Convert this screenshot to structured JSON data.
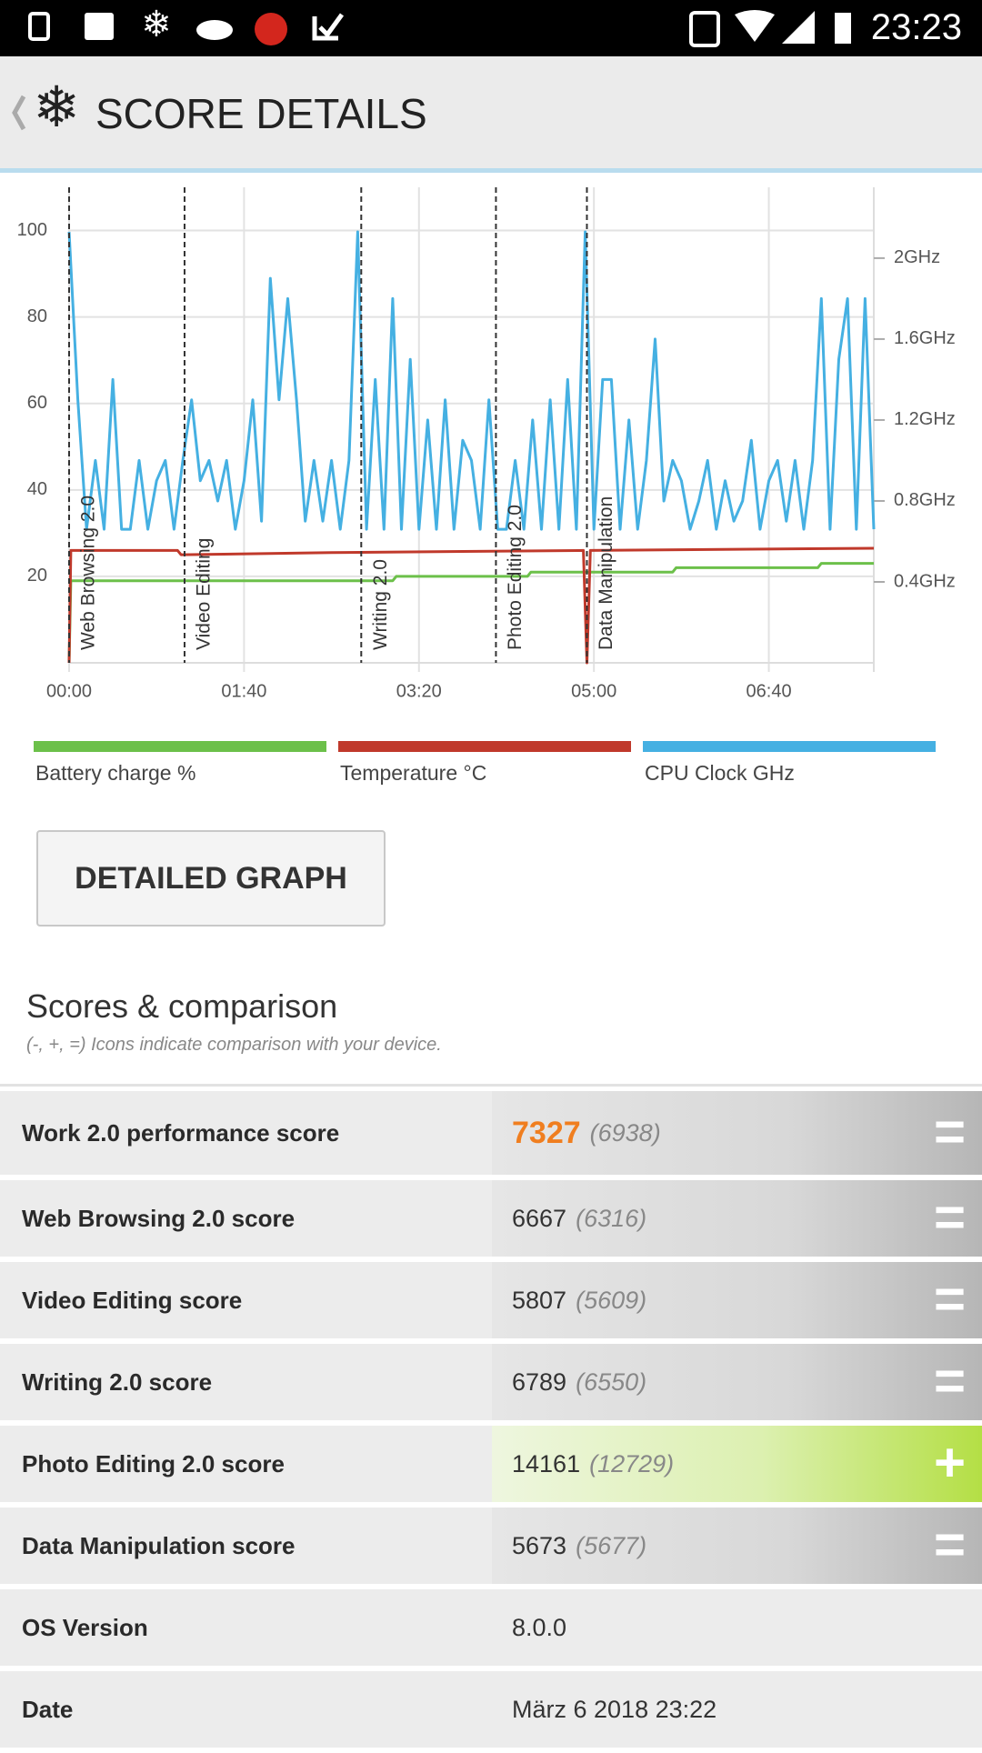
{
  "status_bar": {
    "time": "23:23"
  },
  "header": {
    "title": "SCORE DETAILS"
  },
  "chart_data": {
    "type": "line",
    "xlim": [
      0,
      460
    ],
    "xticks": [
      {
        "value": 0,
        "label": "00:00"
      },
      {
        "value": 100,
        "label": "01:40"
      },
      {
        "value": 200,
        "label": "03:20"
      },
      {
        "value": 300,
        "label": "05:00"
      },
      {
        "value": 400,
        "label": "06:40"
      }
    ],
    "ylim": [
      0,
      110
    ],
    "yticks": [
      20,
      40,
      60,
      80,
      100
    ],
    "y2lim": [
      0,
      2.35
    ],
    "y2ticks": [
      {
        "value": 0.4,
        "label": "0.4GHz"
      },
      {
        "value": 0.8,
        "label": "0.8GHz"
      },
      {
        "value": 1.2,
        "label": "1.2GHz"
      },
      {
        "value": 1.6,
        "label": "1.6GHz"
      },
      {
        "value": 2,
        "label": "2GHz"
      }
    ],
    "grid": true,
    "legend": "bottom",
    "markers": [
      {
        "x": 0,
        "label": "Web Browsing 2.0"
      },
      {
        "x": 66,
        "label": "Video Editing"
      },
      {
        "x": 167,
        "label": "Writing 2.0"
      },
      {
        "x": 244,
        "label": "Photo Editing 2.0"
      },
      {
        "x": 296,
        "label": "Data Manipulation"
      }
    ],
    "series": [
      {
        "name": "Battery charge %",
        "color": "#6cc04a",
        "x": [
          0,
          1,
          185,
          187,
          262,
          264,
          345,
          347,
          428,
          430,
          460
        ],
        "values": [
          0,
          19,
          19,
          20,
          20,
          21,
          21,
          22,
          22,
          23,
          23
        ]
      },
      {
        "name": "Temperature °C",
        "color": "#c0392b",
        "x": [
          0,
          1,
          62,
          64,
          150,
          294,
          296,
          298,
          460
        ],
        "values": [
          0,
          26,
          26,
          25,
          25.5,
          26,
          0,
          26,
          26.5
        ]
      },
      {
        "name": "CPU Clock GHz",
        "color": "#45b0e2",
        "axis": "y2",
        "x": [
          0,
          5,
          10,
          15,
          20,
          25,
          30,
          35,
          40,
          45,
          50,
          55,
          60,
          65,
          70,
          75,
          80,
          85,
          90,
          95,
          100,
          105,
          110,
          115,
          120,
          125,
          130,
          135,
          140,
          145,
          150,
          155,
          160,
          165,
          170,
          175,
          180,
          185,
          190,
          195,
          200,
          205,
          210,
          215,
          220,
          225,
          230,
          235,
          240,
          245,
          250,
          255,
          260,
          265,
          270,
          275,
          280,
          285,
          290,
          295,
          300,
          305,
          310,
          315,
          320,
          325,
          330,
          335,
          340,
          345,
          350,
          355,
          360,
          365,
          370,
          375,
          380,
          385,
          390,
          395,
          400,
          405,
          410,
          415,
          420,
          425,
          430,
          435,
          440,
          445,
          450,
          455,
          460
        ],
        "values": [
          2.13,
          1.3,
          0.66,
          1.0,
          0.66,
          1.4,
          0.66,
          0.66,
          1.0,
          0.66,
          0.9,
          1.0,
          0.66,
          1.0,
          1.3,
          0.9,
          1.0,
          0.8,
          1.0,
          0.66,
          0.9,
          1.3,
          0.7,
          1.9,
          1.3,
          1.8,
          1.3,
          0.7,
          1.0,
          0.7,
          1.0,
          0.66,
          1.0,
          2.13,
          0.66,
          1.4,
          0.66,
          1.8,
          0.66,
          1.5,
          0.66,
          1.2,
          0.66,
          1.3,
          0.66,
          1.1,
          1.0,
          0.66,
          1.3,
          0.66,
          0.66,
          1.0,
          0.66,
          1.2,
          0.66,
          1.3,
          0.66,
          1.4,
          0.66,
          2.13,
          0.66,
          1.4,
          1.4,
          0.66,
          1.2,
          0.66,
          1.0,
          1.6,
          0.8,
          1.0,
          0.9,
          0.66,
          0.8,
          1.0,
          0.66,
          0.9,
          0.7,
          0.8,
          1.1,
          0.66,
          0.9,
          1.0,
          0.7,
          1.0,
          0.66,
          1.0,
          1.8,
          0.66,
          1.5,
          1.8,
          0.66,
          1.8,
          0.66
        ]
      }
    ]
  },
  "button": {
    "label": "DETAILED GRAPH"
  },
  "scores": {
    "title": "Scores & comparison",
    "subtitle": "(-, +, =) Icons indicate comparison with your device.",
    "rows": [
      {
        "label": "Work 2.0 performance score",
        "value": 7327,
        "comparison": "(6938)",
        "icon": "="
      },
      {
        "label": "Web Browsing 2.0 score",
        "value": 6667,
        "comparison": "(6316)",
        "icon": "="
      },
      {
        "label": "Video Editing score",
        "value": 5807,
        "comparison": "(5609)",
        "icon": "="
      },
      {
        "label": "Writing 2.0 score",
        "value": 6789,
        "comparison": "(6550)",
        "icon": "="
      },
      {
        "label": "Photo Editing 2.0 score",
        "value": 14161,
        "comparison": "(12729)",
        "icon": "+"
      },
      {
        "label": "Data Manipulation score",
        "value": 5673,
        "comparison": "(5677)",
        "icon": "="
      },
      {
        "label": "OS Version",
        "value": "8.0.0"
      },
      {
        "label": "Date",
        "value": "März 6 2018 23:22"
      }
    ]
  }
}
